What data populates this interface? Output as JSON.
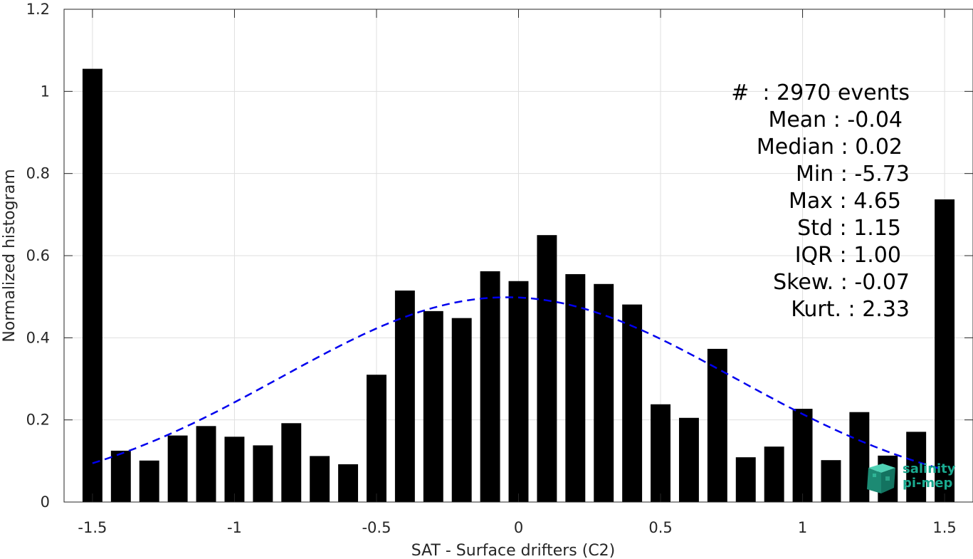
{
  "chart_data": {
    "type": "bar",
    "xlabel": "SAT - Surface drifters (C2)",
    "ylabel": "Normalized histogram",
    "xlim": [
      -1.6,
      1.6
    ],
    "ylim": [
      0,
      1.2
    ],
    "xticks": [
      -1.5,
      -1,
      -0.5,
      0,
      0.5,
      1,
      1.5
    ],
    "xtick_labels": [
      "-1.5",
      "-1",
      "-0.5",
      "0",
      "0.5",
      "1",
      "1.5"
    ],
    "yticks": [
      0,
      0.2,
      0.4,
      0.6,
      0.8,
      1,
      1.2
    ],
    "ytick_labels": [
      "0",
      "0.2",
      "0.4",
      "0.6",
      "0.8",
      "1",
      "1.2"
    ],
    "grid": true,
    "bar_color": "#000000",
    "bar_width": 0.07,
    "x": [
      -1.5,
      -1.4,
      -1.3,
      -1.2,
      -1.1,
      -1.0,
      -0.9,
      -0.8,
      -0.7,
      -0.6,
      -0.5,
      -0.4,
      -0.3,
      -0.2,
      -0.1,
      0.0,
      0.1,
      0.2,
      0.3,
      0.4,
      0.5,
      0.6,
      0.7,
      0.8,
      0.9,
      1.0,
      1.1,
      1.2,
      1.3,
      1.4,
      1.5
    ],
    "values": [
      1.055,
      0.125,
      0.101,
      0.162,
      0.185,
      0.159,
      0.138,
      0.192,
      0.112,
      0.092,
      0.31,
      0.515,
      0.465,
      0.448,
      0.562,
      0.538,
      0.65,
      0.555,
      0.531,
      0.481,
      0.238,
      0.205,
      0.373,
      0.109,
      0.135,
      0.227,
      0.102,
      0.219,
      0.113,
      0.171,
      0.737
    ],
    "fit": {
      "style": "dashed",
      "color": "#0000ee",
      "mean": -0.04,
      "std": 0.8,
      "xrange": [
        -1.5,
        1.5
      ]
    },
    "stats": [
      "#  : 2970 events",
      "Mean : -0.04",
      "Median : 0.02",
      "Min : -5.73",
      "Max : 4.65",
      "Std : 1.15",
      "IQR : 1.00",
      "Skew. : -0.07",
      "Kurt. : 2.33"
    ]
  },
  "logo": {
    "line1": "salinity",
    "line2": "pi-mep",
    "color": "#1aa98f"
  }
}
